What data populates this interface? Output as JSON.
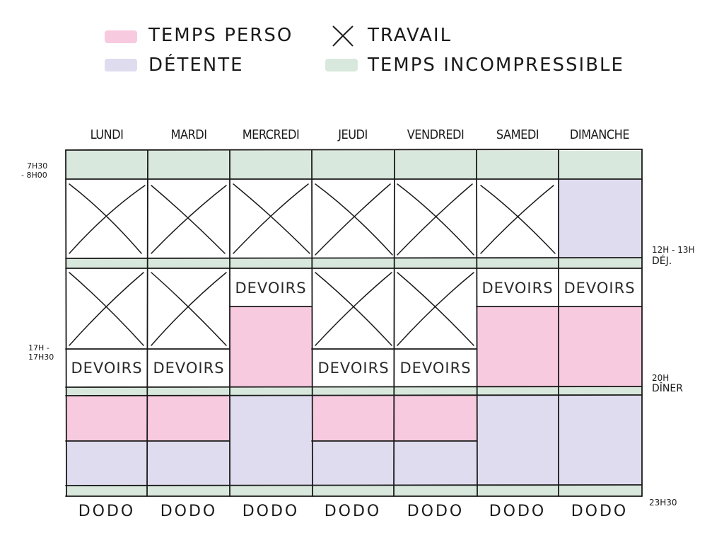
{
  "legend": {
    "temps_perso": "TEMPS PERSO",
    "detente": "DÉTENTE",
    "travail": "TRAVAIL",
    "temps_incompressible": "TEMPS INCOMPRESSIBLE"
  },
  "colors": {
    "temps_perso": "#f7cadf",
    "detente": "#e0dcef",
    "temps_incompressible": "#d9e8dc",
    "line": "#1a1a1a"
  },
  "days": [
    "LUNDI",
    "MARDI",
    "MERCREDI",
    "JEUDI",
    "VENDREDI",
    "SAMEDI",
    "DIMANCHE"
  ],
  "block_text": {
    "devoirs": "DEVOIRS",
    "dodo": "DODO"
  },
  "time_labels": {
    "left_morning": [
      "7H30",
      "- 8H00"
    ],
    "left_afternoon": [
      "17H -",
      "17H30"
    ],
    "right_lunch": [
      "12H - 13H",
      "DÉJ."
    ],
    "right_dinner": [
      "20H",
      "DÎNER"
    ],
    "right_night": "23H30"
  }
}
